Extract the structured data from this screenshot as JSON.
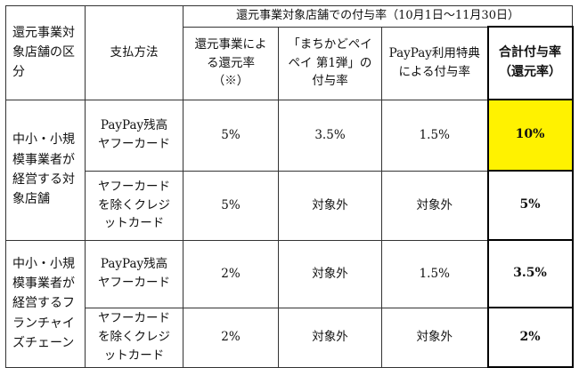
{
  "header": {
    "category": "還元事業対象店舗の区分",
    "category_lines": [
      "還元事業対",
      "象店舗の区",
      "分"
    ],
    "payment": "支払方法",
    "period_title": "還元事業対象店舗での付与率（10月1日〜11月30日）",
    "col1_lines": [
      "還元事業によ",
      "る還元率",
      "（※）"
    ],
    "col2_lines": [
      "「まちかどペイ",
      "ペイ 第1弾」の",
      "付与率"
    ],
    "col3_lines": [
      "PayPay利用特典",
      "による付与率"
    ],
    "col4_lines": [
      "合計付与率",
      "（還元率）"
    ]
  },
  "groups": [
    {
      "category_lines": [
        "中小・小規",
        "模事業者が",
        "経営する対",
        "象店舗"
      ],
      "rows": [
        {
          "payment_lines": [
            "PayPay残高",
            "ヤフーカード"
          ],
          "reduction": "5%",
          "machikado": "3.5%",
          "paypay_bonus": "1.5%",
          "total": "10%",
          "highlight": true
        },
        {
          "payment_lines": [
            "ヤフーカード",
            "を除くクレジ",
            "ットカード"
          ],
          "reduction": "5%",
          "machikado": "対象外",
          "paypay_bonus": "対象外",
          "total": "5%",
          "highlight": false
        }
      ]
    },
    {
      "category_lines": [
        "中小・小規",
        "模事業者が",
        "経営するフ",
        "ランチャイ",
        "ズチェーン"
      ],
      "rows": [
        {
          "payment_lines": [
            "PayPay残高",
            "ヤフーカード"
          ],
          "reduction": "2%",
          "machikado": "対象外",
          "paypay_bonus": "1.5%",
          "total": "3.5%",
          "highlight": false
        },
        {
          "payment_lines": [
            "ヤフーカード",
            "を除くクレジ",
            "ットカード"
          ],
          "reduction": "2%",
          "machikado": "対象外",
          "paypay_bonus": "対象外",
          "total": "2%",
          "highlight": false
        }
      ]
    }
  ],
  "colors": {
    "highlight": "#fff200",
    "border": "#333333"
  }
}
